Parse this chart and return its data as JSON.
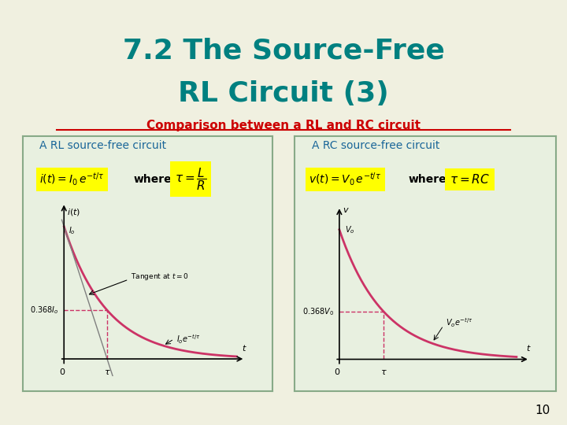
{
  "title_line1": "7.2 The Source-Free",
  "title_line2": "RL Circuit (3)",
  "title_color": "#008080",
  "subtitle": "Comparison between a RL and RC circuit",
  "subtitle_color": "#cc0000",
  "slide_bg": "#f0f0e0",
  "box_bg": "#e8f0e0",
  "box_border": "#88aa88",
  "left_title": "A RL source-free circuit",
  "right_title": "A RC source-free circuit",
  "panel_title_color": "#1a6699",
  "yellow_bg": "#ffff00",
  "curve_color": "#cc3366",
  "dashed_color": "#cc3366",
  "page_number": "10"
}
